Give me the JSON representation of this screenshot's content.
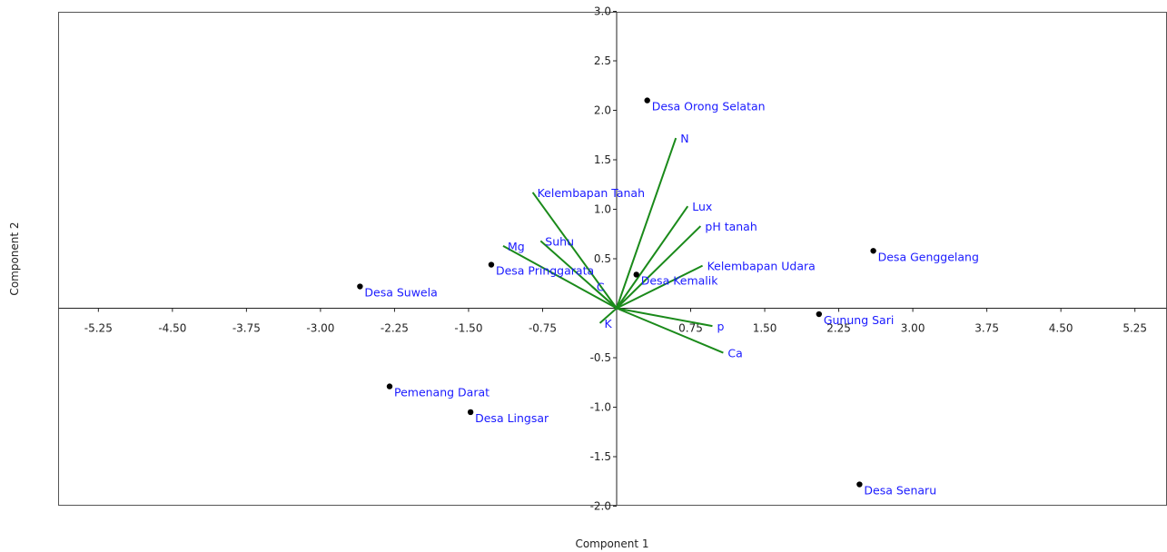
{
  "chart_data": {
    "type": "scatter",
    "subtype": "pca-biplot",
    "xlabel": "Component 1",
    "ylabel": "Component 2",
    "xlim": [
      -5.4,
      5.4
    ],
    "ylim": [
      -2.0,
      3.0
    ],
    "x_ticks": [
      "-5.25",
      "-4.50",
      "-3.75",
      "-3.00",
      "-2.25",
      "-1.50",
      "-0.75",
      "0.75",
      "1.50",
      "2.25",
      "3.00",
      "3.75",
      "4.50",
      "5.25"
    ],
    "x_tick_values": [
      -5.25,
      -4.5,
      -3.75,
      -3.0,
      -2.25,
      -1.5,
      -0.75,
      0.75,
      1.5,
      2.25,
      3.0,
      3.75,
      4.5,
      5.25
    ],
    "y_ticks": [
      "3.0",
      "2.5",
      "2.0",
      "1.5",
      "1.0",
      "0.5",
      "-0.5",
      "-1.0",
      "-1.5",
      "-2.0"
    ],
    "y_tick_values": [
      3.0,
      2.5,
      2.0,
      1.5,
      1.0,
      0.5,
      -0.5,
      -1.0,
      -1.5,
      -2.0
    ],
    "grid": false,
    "points": [
      {
        "label": "Desa Orong Selatan",
        "x": 0.31,
        "y": 2.1
      },
      {
        "label": "Desa Genggelang",
        "x": 2.6,
        "y": 0.58
      },
      {
        "label": "Desa Pringgarata",
        "x": -1.27,
        "y": 0.44
      },
      {
        "label": "Desa Kemalik",
        "x": 0.2,
        "y": 0.34
      },
      {
        "label": "Desa Suwela",
        "x": -2.6,
        "y": 0.22
      },
      {
        "label": "Gunung Sari",
        "x": 2.05,
        "y": -0.06
      },
      {
        "label": "Pemenang Darat",
        "x": -2.3,
        "y": -0.79
      },
      {
        "label": "Desa Lingsar",
        "x": -1.48,
        "y": -1.05
      },
      {
        "label": "Desa Senaru",
        "x": 2.46,
        "y": -1.78
      }
    ],
    "loadings": [
      {
        "label": "N",
        "x": 0.6,
        "y": 1.72
      },
      {
        "label": "Kelembapan Tanah",
        "x": -0.85,
        "y": 1.17
      },
      {
        "label": "Lux",
        "x": 0.72,
        "y": 1.03
      },
      {
        "label": "pH tanah",
        "x": 0.85,
        "y": 0.83
      },
      {
        "label": "Suhu",
        "x": -0.77,
        "y": 0.68
      },
      {
        "label": "Mg",
        "x": -1.15,
        "y": 0.63
      },
      {
        "label": "Kelembapan Udara",
        "x": 0.87,
        "y": 0.43
      },
      {
        "label": "C",
        "x": -0.25,
        "y": 0.22
      },
      {
        "label": "K",
        "x": -0.17,
        "y": -0.15
      },
      {
        "label": "p",
        "x": 0.97,
        "y": -0.18
      },
      {
        "label": "Ca",
        "x": 1.08,
        "y": -0.45
      }
    ],
    "colors": {
      "points": "#000000",
      "point_labels": "#1a1aff",
      "loadings": "#1a8a1a",
      "loading_labels": "#1a1aff",
      "frame": "#555555",
      "axes": "#222222"
    }
  }
}
